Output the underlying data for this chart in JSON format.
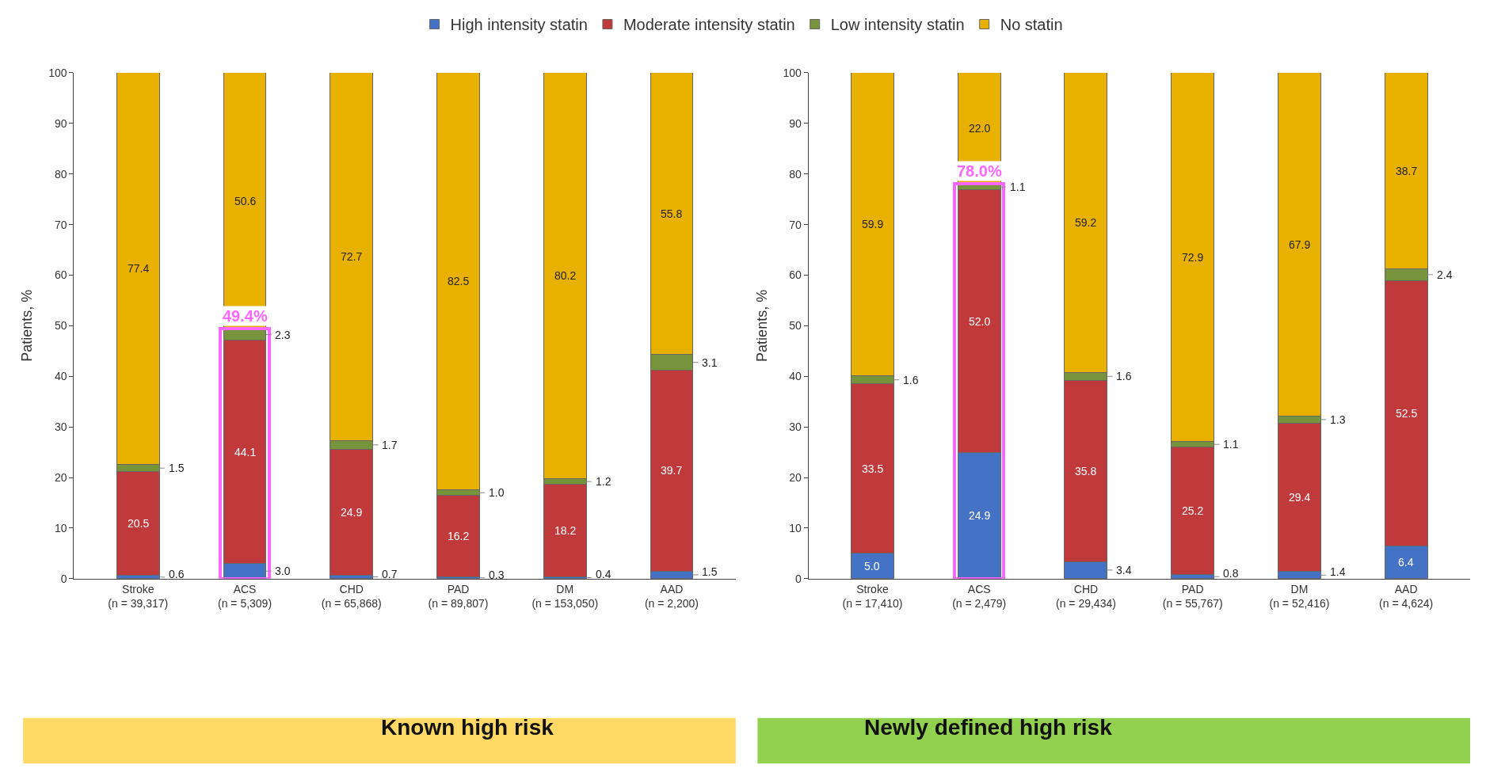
{
  "chart_data": [
    {
      "type": "bar",
      "stacked": true,
      "subtitle": "Known high risk",
      "ylabel": "Patients, %",
      "ylim": [
        0,
        100
      ],
      "yticks": [
        0,
        10,
        20,
        30,
        40,
        50,
        60,
        70,
        80,
        90,
        100
      ],
      "legend": "top",
      "categories": [
        "Stroke\n(n = 39,317)",
        "ACS\n(n = 5,309)",
        "CHD\n(n = 65,868)",
        "PAD\n(n = 89,807)",
        "DM\n(n = 153,050)",
        "AAD\n(n = 2,200)"
      ],
      "series": [
        {
          "name": "High intensity statin",
          "color": "#4472c4",
          "values": [
            0.6,
            3.0,
            0.7,
            0.3,
            0.4,
            1.5
          ],
          "value_labels": [
            "0.6",
            "3.0",
            "0.7",
            "0.3",
            "0.4",
            "1.5"
          ]
        },
        {
          "name": "Moderate intensity statin",
          "color": "#c0393b",
          "values": [
            20.5,
            44.1,
            24.9,
            16.2,
            18.2,
            39.7
          ],
          "value_labels": [
            "20.5",
            "44.1",
            "24.9",
            "16.2",
            "18.2",
            "39.7"
          ]
        },
        {
          "name": "Low intensity statin",
          "color": "#77933c",
          "values": [
            1.5,
            2.3,
            1.7,
            1.0,
            1.2,
            3.1
          ],
          "value_labels": [
            "1.5",
            "2.3",
            "1.7",
            "1.0",
            "1.2",
            "3.1"
          ]
        },
        {
          "name": "No statin",
          "color": "#e8b100",
          "values": [
            77.4,
            50.6,
            72.7,
            82.5,
            80.2,
            55.8
          ],
          "value_labels": [
            "77.4",
            "50.6",
            "72.7",
            "82.5",
            "80.2",
            "55.8"
          ]
        }
      ]
    },
    {
      "type": "bar",
      "ylim": [
        0,
        100
      ],
      "tick_labels": false,
      "categories": [
        "Stroke\n(n = 39,317)",
        "ACS\n(n = 5,309)",
        "CHD\n(n = 65,868)",
        "PAD\n(n = 89,807)",
        "DM\n(n = 153,050)",
        "AAD\n(n = 2,200)"
      ],
      "series": [
        {
          "color": "#ff66ff",
          "values": [
            null,
            49.4,
            null,
            null,
            null,
            null
          ],
          "value_labels": [
            null,
            "49.4%",
            null,
            null,
            null,
            null
          ]
        }
      ]
    },
    {
      "type": "bar",
      "stacked": true,
      "subtitle": "Newly defined high risk",
      "ylabel": "Patients, %",
      "ylim": [
        0,
        100
      ],
      "yticks": [
        0,
        10,
        20,
        30,
        40,
        50,
        60,
        70,
        80,
        90,
        100
      ],
      "categories": [
        "Stroke\n(n = 17,410)",
        "ACS\n(n = 2,479)",
        "CHD\n(n = 29,434)",
        "PAD\n(n = 55,767)",
        "DM\n(n = 52,416)",
        "AAD\n(n = 4,624)"
      ],
      "series": [
        {
          "color": "#4472c4",
          "values": [
            5.0,
            24.9,
            3.4,
            0.8,
            1.4,
            6.4
          ],
          "value_labels": [
            "5.0",
            "24.9",
            "3.4",
            "0.8",
            "1.4",
            "6.4"
          ]
        },
        {
          "color": "#c0393b",
          "values": [
            33.5,
            52.0,
            35.8,
            25.2,
            29.4,
            52.5
          ],
          "value_labels": [
            "33.5",
            "52.0",
            "35.8",
            "25.2",
            "29.4",
            "52.5"
          ]
        },
        {
          "color": "#77933c",
          "values": [
            1.6,
            1.1,
            1.6,
            1.1,
            1.3,
            2.4
          ],
          "value_labels": [
            "1.6",
            "1.1",
            "1.6",
            "1.1",
            "1.3",
            "2.4"
          ]
        },
        {
          "color": "#e8b100",
          "values": [
            59.9,
            22.0,
            59.2,
            72.9,
            67.9,
            38.7
          ],
          "value_labels": [
            "59.9",
            "22.0",
            "59.2",
            "72.9",
            "67.9",
            "38.7"
          ]
        }
      ]
    },
    {
      "type": "bar",
      "ylim": [
        0,
        100
      ],
      "tick_labels": false,
      "categories": [
        "Stroke\n(n = 17,410)",
        "ACS\n(n = 2,479)",
        "CHD\n(n = 29,434)",
        "PAD\n(n = 55,767)",
        "DM\n(n = 52,416)",
        "AAD\n(n = 4,624)"
      ],
      "series": [
        {
          "color": "#ff66ff",
          "values": [
            null,
            78.0,
            null,
            null,
            null,
            null
          ],
          "value_labels": [
            null,
            "78.0%",
            null,
            null,
            null,
            null
          ]
        }
      ]
    }
  ]
}
